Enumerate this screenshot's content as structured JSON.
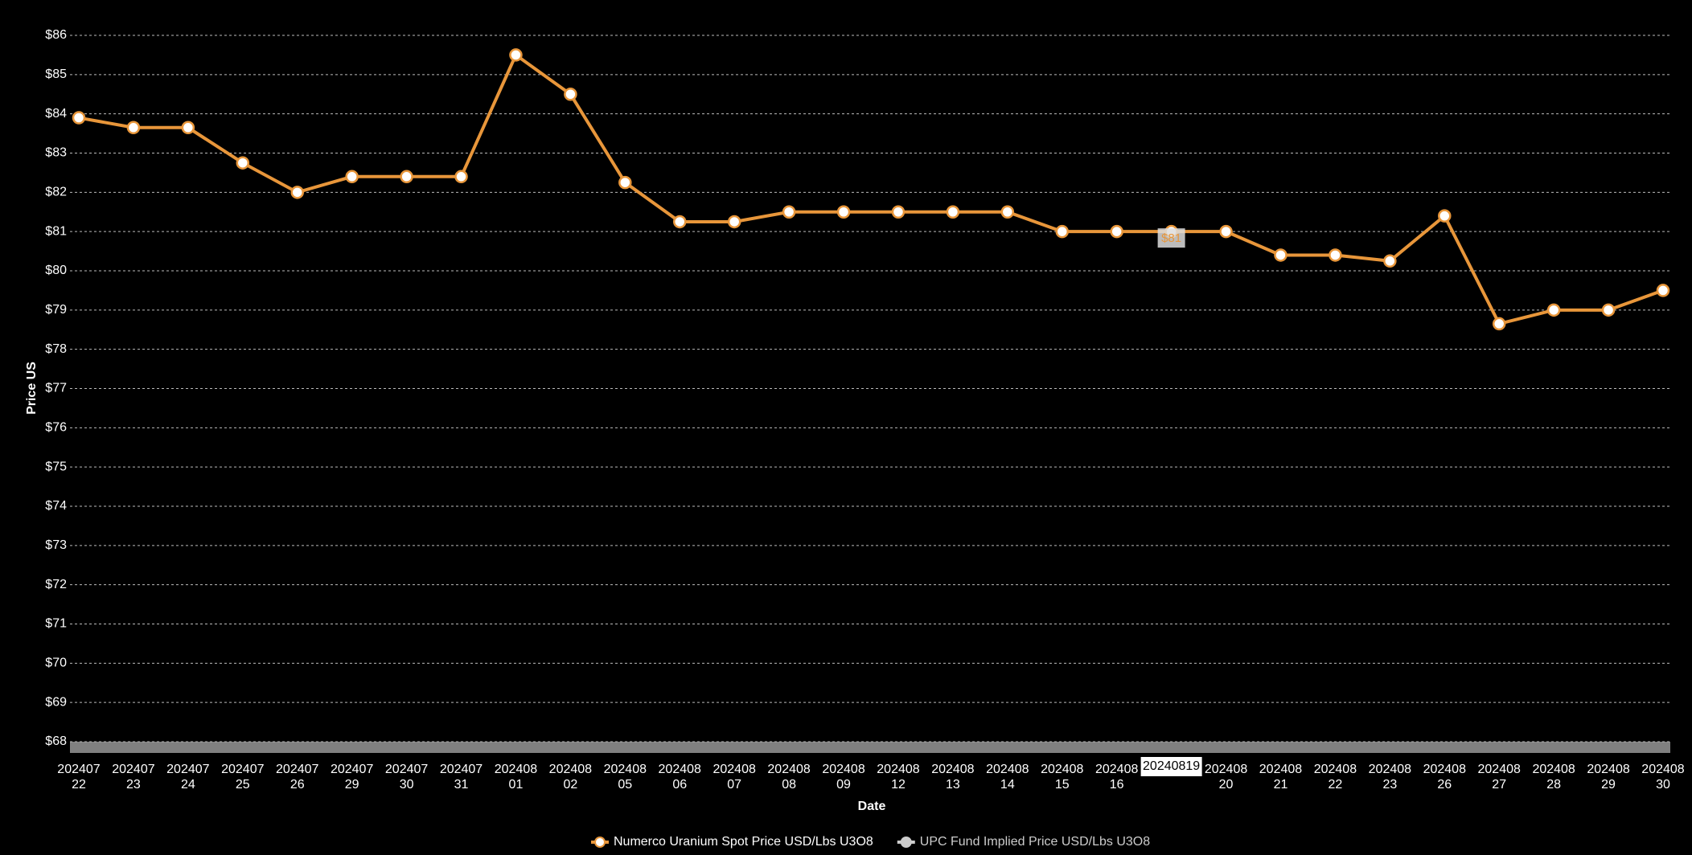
{
  "chart_data": {
    "type": "line",
    "x_label": "Date",
    "y_label": "Price US",
    "categories": [
      "20240722",
      "20240723",
      "20240724",
      "20240725",
      "20240726",
      "20240729",
      "20240730",
      "20240731",
      "20240801",
      "20240802",
      "20240805",
      "20240806",
      "20240807",
      "20240808",
      "20240809",
      "20240812",
      "20240813",
      "20240814",
      "20240815",
      "20240816",
      "20240819",
      "20240820",
      "20240821",
      "20240822",
      "20240823",
      "20240826",
      "20240827",
      "20240828",
      "20240829",
      "20240830"
    ],
    "series": [
      {
        "name": "Numerco Uranium Spot Price USD/Lbs U3O8",
        "color": "#e8963a",
        "values": [
          83.9,
          83.65,
          83.65,
          82.75,
          82.0,
          82.4,
          82.4,
          82.4,
          85.5,
          84.5,
          82.25,
          81.25,
          81.25,
          81.5,
          81.5,
          81.5,
          81.5,
          81.5,
          81.0,
          81.0,
          81.0,
          81.0,
          80.4,
          80.4,
          80.25,
          81.4,
          78.65,
          79.0,
          79.0,
          79.5
        ]
      },
      {
        "name": "UPC Fund Implied Price USD/Lbs U3O8",
        "color": "#cccccc",
        "hidden": true,
        "values": [
          null,
          null,
          null,
          null,
          null,
          null,
          null,
          null,
          null,
          null,
          null,
          null,
          null,
          null,
          null,
          null,
          null,
          null,
          null,
          null,
          null,
          null,
          null,
          null,
          null,
          null,
          null,
          null,
          null,
          null
        ]
      }
    ],
    "ylim": [
      68,
      86
    ],
    "yticks": [
      {
        "value": 68,
        "label": "$68"
      },
      {
        "value": 69,
        "label": "$69"
      },
      {
        "value": 70,
        "label": "$70"
      },
      {
        "value": 71,
        "label": "$71"
      },
      {
        "value": 72,
        "label": "$72"
      },
      {
        "value": 73,
        "label": "$73"
      },
      {
        "value": 74,
        "label": "$74"
      },
      {
        "value": 75,
        "label": "$75"
      },
      {
        "value": 76,
        "label": "$76"
      },
      {
        "value": 77,
        "label": "$77"
      },
      {
        "value": 78,
        "label": "$78"
      },
      {
        "value": 79,
        "label": "$79"
      },
      {
        "value": 80,
        "label": "$80"
      },
      {
        "value": 81,
        "label": "$81"
      },
      {
        "value": 82,
        "label": "$82"
      },
      {
        "value": 83,
        "label": "$83"
      },
      {
        "value": 84,
        "label": "$84"
      },
      {
        "value": 85,
        "label": "$85"
      },
      {
        "value": 86,
        "label": "$86"
      }
    ],
    "grid": true,
    "tooltip": {
      "index": 20,
      "x_label": "20240819",
      "value_label": "$81"
    }
  }
}
